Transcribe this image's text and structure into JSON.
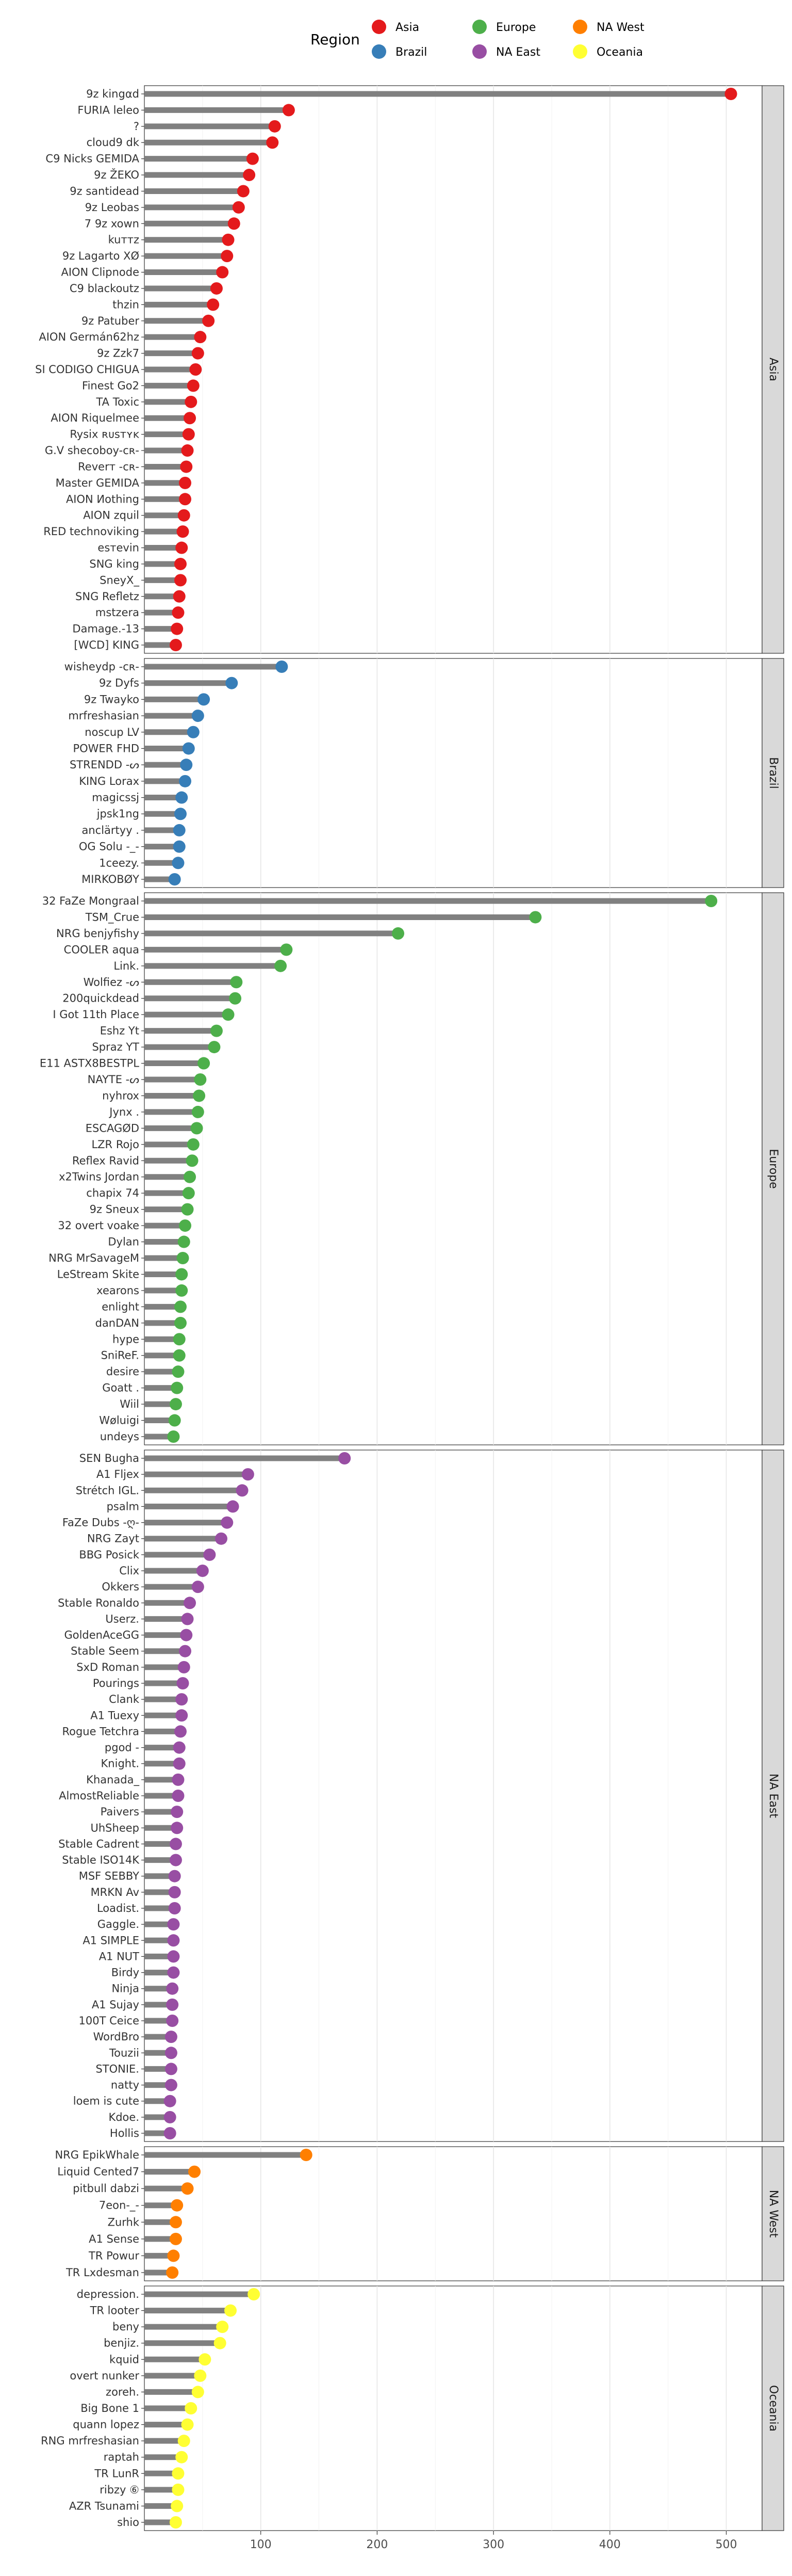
{
  "chart_data": {
    "type": "lollipop",
    "orientation": "horizontal",
    "facet_by": "Region",
    "legend": {
      "title": "Region",
      "position": "top",
      "entries": [
        {
          "name": "Asia",
          "color": "#E41A1C"
        },
        {
          "name": "Europe",
          "color": "#4DAF4A"
        },
        {
          "name": "NA West",
          "color": "#FF7F00"
        },
        {
          "name": "Brazil",
          "color": "#377EB8"
        },
        {
          "name": "NA East",
          "color": "#984EA3"
        },
        {
          "name": "Oceania",
          "color": "#FFFF33"
        }
      ]
    },
    "xlim": [
      0,
      525
    ],
    "xticks": [
      100,
      200,
      300,
      400,
      500
    ],
    "grid": true,
    "panels": [
      {
        "region": "Asia",
        "color": "#E41A1C",
        "players": [
          "9z kingαd",
          "FURIA leleo",
          "?",
          "cloud9 dk",
          "C9 Nicks GEMIDA",
          "9z ŽEKO",
          "9z santidead",
          "9z Leobas",
          "7 9z xown",
          "kuттz",
          "9z Lagarto XØ",
          "AION Clipnode",
          "C9 blackoutz",
          "thzin",
          "9z Patuber",
          "AION Germán62hz",
          "9z Zzk7",
          "SI CODIGO CHIGUA",
          "Finest Go2",
          "TA Toxic",
          "AION Riquelmee",
          "Rysix ʀᴜsтʏᴋ",
          "G.V shecoboy-cʀ-",
          "Reverт -cʀ-",
          "Master GEMIDA",
          "AION Иothing",
          "AION zquil",
          "RED technoviking",
          "esтevin",
          "SNG king",
          "SneyX_",
          "SNG Refletz",
          "mstzera",
          "Damage.-13",
          "[WCD] KING"
        ],
        "values": [
          504,
          124,
          112,
          110,
          93,
          90,
          85,
          81,
          77,
          72,
          71,
          67,
          62,
          59,
          55,
          48,
          46,
          44,
          42,
          40,
          39,
          38,
          37,
          36,
          35,
          35,
          34,
          33,
          32,
          31,
          31,
          30,
          29,
          28,
          27
        ]
      },
      {
        "region": "Brazil",
        "color": "#377EB8",
        "players": [
          "wisheydp -cʀ-",
          "9z Dyfs",
          "9z Twayko",
          "mrfreshasian",
          "noscup LV",
          "POWER FHD",
          "STRENDD -ᔕ",
          "KING Lorax",
          "magicssj",
          "jpsk1ng",
          "anclärtyy .",
          "OG Solu -_-",
          "1ceezy.",
          "MIRKOBØY"
        ],
        "values": [
          118,
          75,
          51,
          46,
          42,
          38,
          36,
          35,
          32,
          31,
          30,
          30,
          29,
          26
        ]
      },
      {
        "region": "Europe",
        "color": "#4DAF4A",
        "players": [
          "32 FaZe Mongraal",
          "TSM_Crue",
          "NRG benjyfishy",
          "COOLER aqua",
          "Link.",
          "Wolfiez -ᔕ",
          "200quickdead",
          "I Got 11th Place",
          "Eshz Yt",
          "Sprаz YT",
          "E11 ASTX8BESTPL",
          "NAYTE -ᔕ",
          "nyhrox",
          "Jynx .",
          "ESCAGØD",
          "LZR Rojo",
          "Reflex Ravid",
          "x2Twins Jordan",
          "chapix 74",
          "9z Sneux",
          "32 overt voake",
          "Dylan",
          "NRG MrSavageM",
          "LeStream Skite",
          "xearons",
          "enlight",
          "danDAN",
          "hype",
          "SniReF.",
          "desire",
          "Goatt .",
          "Wiil",
          "Wøluigi",
          "undeys"
        ],
        "values": [
          487,
          336,
          218,
          122,
          117,
          79,
          78,
          72,
          62,
          60,
          51,
          48,
          47,
          46,
          45,
          42,
          41,
          39,
          38,
          37,
          35,
          34,
          33,
          32,
          32,
          31,
          31,
          30,
          30,
          29,
          28,
          27,
          26,
          25
        ]
      },
      {
        "region": "NA East",
        "color": "#984EA3",
        "players": [
          "SEN Bugha",
          "A1 Fljex",
          "Strétch IGL.",
          "psalm",
          "FaZe Dubs -ღ-",
          "NRG Zayt",
          "BBG Posick",
          "Clix",
          "Okkers",
          "Stable Ronaldo",
          "Userz.",
          "GoldenAceGG",
          "Stable Seem",
          "SxD Roman",
          "Pourings",
          "Clank",
          "A1 Tuexy",
          "Rogue Tetchra",
          "pgod -",
          "Knight.",
          "Khanada_",
          "AlmostReliable",
          "Paivers",
          "UhSheep",
          "Stable Cadrent",
          "Stable ISO14K",
          "MSF SEBBY",
          "MRKN Av",
          "Loadist.",
          "Gaggle.",
          "A1 SIMPLE",
          "A1 NUT",
          "Birdy",
          "Ninja",
          "A1 Sujay",
          "100T Ceice",
          "WordBro",
          "Touzii",
          "STONIE.",
          "natty",
          "loem is cute",
          "Kdoe.",
          "Hollis"
        ],
        "values": [
          172,
          89,
          84,
          76,
          71,
          66,
          56,
          50,
          46,
          39,
          37,
          36,
          35,
          34,
          33,
          32,
          32,
          31,
          30,
          30,
          29,
          29,
          28,
          28,
          27,
          27,
          26,
          26,
          26,
          25,
          25,
          25,
          25,
          24,
          24,
          24,
          23,
          23,
          23,
          23,
          22,
          22,
          22
        ]
      },
      {
        "region": "NA West",
        "color": "#FF7F00",
        "players": [
          "NRG EpikWhale",
          "Liquid Cented7",
          "pitbull dabzi",
          "7eon-_-",
          "Zurhk",
          "A1 Sense",
          "TR Powur",
          "TR Lxdesman"
        ],
        "values": [
          139,
          43,
          37,
          28,
          27,
          27,
          25,
          24
        ]
      },
      {
        "region": "Oceania",
        "color": "#FFFF33",
        "players": [
          "depression.",
          "TR looter",
          "beny",
          "benjiz.",
          "kquid",
          "overt nunker",
          "zoreh.",
          "Big Bone 1",
          "quann lopez",
          "RNG mrfreshasian",
          "raptah",
          "TR LunR",
          "ribzy ⑥",
          "AZR Tsunami",
          "shio"
        ],
        "values": [
          94,
          74,
          67,
          65,
          52,
          48,
          46,
          40,
          37,
          34,
          32,
          29,
          29,
          28,
          27
        ]
      }
    ]
  }
}
